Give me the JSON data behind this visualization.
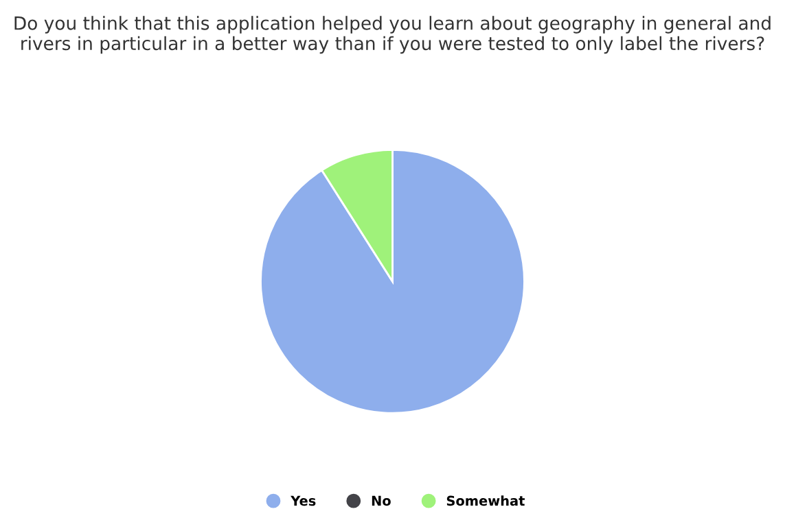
{
  "chart_data": {
    "type": "pie",
    "title": "Do you think that this application helped you learn about geography in general and rivers in particular in a better way than if you were tested to only label the rivers?",
    "categories": [
      "Yes",
      "No",
      "Somewhat"
    ],
    "values": [
      91,
      0,
      9
    ],
    "colors": [
      "#8eaeec",
      "#434348",
      "#9ff27a"
    ],
    "legend": "bottom"
  }
}
